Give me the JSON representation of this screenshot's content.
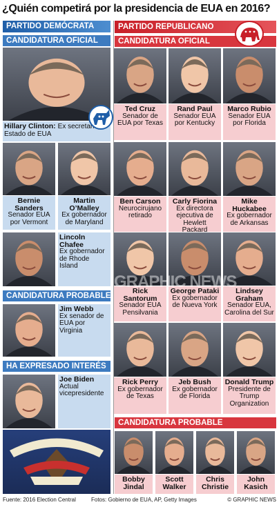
{
  "title": "¿Quién competirá por la presidencia de EUA en 2016?",
  "democrats": {
    "header": "PARTIDO DEMÓCRATA",
    "official": {
      "label": "CANDIDATURA OFICIAL",
      "candidates": [
        {
          "name": "Hillary Clinton:",
          "desc": "Ex secretaria de Estado de EUA"
        },
        {
          "name": "Bernie Sanders",
          "desc": "Senador EUA por Vermont"
        },
        {
          "name": "Martin O’Malley",
          "desc": "Ex gobernador de Maryland"
        },
        {
          "name": "Lincoln Chafee",
          "desc": "Ex gobernador de Rhode Island"
        }
      ]
    },
    "probable": {
      "label": "CANDIDATURA PROBABLE",
      "candidates": [
        {
          "name": "Jim Webb",
          "desc": "Ex senador de EUA por Virginia"
        }
      ]
    },
    "interest": {
      "label": "HA EXPRESADO INTERÉS",
      "candidates": [
        {
          "name": "Joe Biden",
          "desc": "Actual vicepresidente"
        }
      ]
    }
  },
  "republicans": {
    "header": "PARTIDO REPUBLICANO",
    "official": {
      "label": "CANDIDATURA OFICIAL",
      "candidates": [
        {
          "name": "Ted Cruz",
          "desc": "Senador de EUA por Texas"
        },
        {
          "name": "Rand Paul",
          "desc": "Senador EUA por Kentucky"
        },
        {
          "name": "Marco Rubio",
          "desc": "Senador EUA por Florida"
        },
        {
          "name": "Ben Carson",
          "desc": "Neurocirujano retirado"
        },
        {
          "name": "Carly Fiorina",
          "desc": "Ex directora ejecutiva de Hewlett Packard"
        },
        {
          "name": "Mike Huckabee",
          "desc": "Ex gobernador de Arkansas"
        },
        {
          "name": "Rick Santorum",
          "desc": "Senador EUA Pensilvania"
        },
        {
          "name": "George Pataki",
          "desc": "Ex gobernador de Nueva York"
        },
        {
          "name": "Lindsey Graham",
          "desc": "Senador EUA, Carolina del Sur"
        },
        {
          "name": "Rick Perry",
          "desc": "Ex gobernador de Texas"
        },
        {
          "name": "Jeb Bush",
          "desc": "Ex gobernador de Florida"
        },
        {
          "name": "Donald Trump",
          "desc": "Presidente de Trump Organization"
        }
      ]
    },
    "probable": {
      "label": "CANDIDATURA PROBABLE",
      "candidates": [
        {
          "name": "Bobby Jindal"
        },
        {
          "name": "Scott Walker"
        },
        {
          "name": "Chris Christie"
        },
        {
          "name": "John Kasich"
        }
      ]
    }
  },
  "watermark": "GRAPHIC NEWS",
  "footer": {
    "source": "Fuente: 2016 Election Central",
    "photos": "Fotos: Gobierno de EUA, AP, Getty Images",
    "credit": "© GRAPHIC NEWS"
  }
}
